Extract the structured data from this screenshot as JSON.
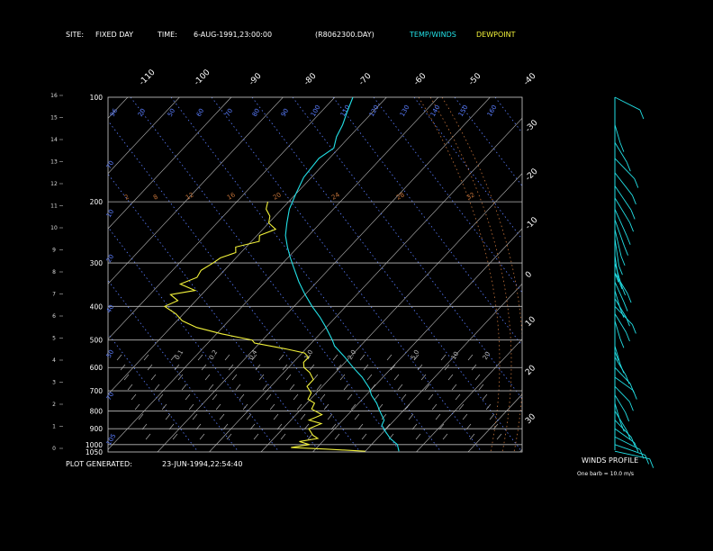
{
  "header": {
    "site_label": "SITE:",
    "site_value": "FIXED DAY",
    "time_label": "TIME:",
    "time_value": "6-AUG-1991,23:00:00",
    "file_id": "(R8062300.DAY)",
    "legend_temp": "TEMP/WINDS",
    "legend_dew": "DEWPOINT"
  },
  "footer": {
    "plot_generated_label": "PLOT GENERATED:",
    "plot_generated_value": "23-JUN-1994,22:54:40"
  },
  "wind_panel": {
    "title": "WINDS PROFILE",
    "note": "One barb = 10.0 m/s"
  },
  "colors": {
    "background": "#000000",
    "temperature": "#22e0e6",
    "dewpoint": "#f2f23a",
    "isobar": "#b8b8b8",
    "isotherm": "#b8b8b8",
    "dry_adiabat": "#5a7dff",
    "moist_adiabat": "#c8753a",
    "text": "#ffffff"
  },
  "chart_data": {
    "type": "line",
    "title": "",
    "xlabel": "",
    "ylabel": "",
    "pressure_levels": [
      "100",
      "200",
      "300",
      "400",
      "500",
      "600",
      "700",
      "800",
      "900",
      "1000",
      "1050"
    ],
    "height_ticks": [
      "0",
      "1",
      "2",
      "3",
      "4",
      "5",
      "6",
      "7",
      "8",
      "9",
      "10",
      "11",
      "12",
      "13",
      "14",
      "15",
      "16"
    ],
    "top_temperature_labels": [
      "-110",
      "-100",
      "-90",
      "-80",
      "-70",
      "-60",
      "-50",
      "-40"
    ],
    "right_temperature_labels": [
      "-30",
      "-20",
      "-10",
      "0",
      "10",
      "20",
      "30"
    ],
    "mixing_ratio_labels": [
      "2",
      "8",
      "12",
      "16",
      "20",
      "24",
      "28",
      "32"
    ],
    "dry_adiabat_labels_top": [
      "96",
      "20",
      "50",
      "60",
      "70",
      "80",
      "90",
      "100",
      "110",
      "120",
      "130",
      "140",
      "150",
      "160"
    ],
    "dry_adiabat_labels_left": [
      "70",
      "10",
      "20",
      "40",
      "50",
      "70",
      "105"
    ],
    "moist_adiabat_labels": [
      "0.1",
      "0.2",
      "0.4",
      "1.0",
      "2.0",
      "5.0",
      "10",
      "20"
    ],
    "temp_range": [
      -40,
      40
    ],
    "pressure_range": [
      100,
      1050
    ],
    "series": [
      {
        "name": "TEMP/WINDS",
        "points": [
          [
            1045,
            6.5
          ],
          [
            1000,
            5.0
          ],
          [
            960,
            2.5
          ],
          [
            920,
            0.5
          ],
          [
            880,
            -1.5
          ],
          [
            850,
            -2.0
          ],
          [
            800,
            -4.5
          ],
          [
            760,
            -6.5
          ],
          [
            720,
            -9.0
          ],
          [
            690,
            -10.5
          ],
          [
            640,
            -14.0
          ],
          [
            600,
            -17.5
          ],
          [
            560,
            -21.0
          ],
          [
            520,
            -25.0
          ],
          [
            500,
            -26.5
          ],
          [
            460,
            -30.0
          ],
          [
            430,
            -33.0
          ],
          [
            400,
            -36.5
          ],
          [
            370,
            -40.0
          ],
          [
            340,
            -43.5
          ],
          [
            310,
            -47.0
          ],
          [
            290,
            -49.5
          ],
          [
            270,
            -52.0
          ],
          [
            250,
            -54.5
          ],
          [
            230,
            -56.5
          ],
          [
            210,
            -58.5
          ],
          [
            190,
            -60.0
          ],
          [
            170,
            -61.5
          ],
          [
            150,
            -62.0
          ],
          [
            140,
            -61.0
          ],
          [
            130,
            -62.5
          ],
          [
            120,
            -63.5
          ],
          [
            110,
            -65.0
          ],
          [
            100,
            -66.5
          ]
        ]
      },
      {
        "name": "DEWPOINT",
        "points": [
          [
            1045,
            0.0
          ],
          [
            1030,
            -8.0
          ],
          [
            1020,
            -15.0
          ],
          [
            1000,
            -12.0
          ],
          [
            980,
            -14.5
          ],
          [
            960,
            -11.5
          ],
          [
            940,
            -13.0
          ],
          [
            900,
            -15.0
          ],
          [
            870,
            -13.5
          ],
          [
            850,
            -16.5
          ],
          [
            820,
            -15.0
          ],
          [
            790,
            -18.0
          ],
          [
            760,
            -18.5
          ],
          [
            740,
            -20.5
          ],
          [
            710,
            -21.0
          ],
          [
            680,
            -23.0
          ],
          [
            650,
            -23.0
          ],
          [
            620,
            -25.0
          ],
          [
            600,
            -27.0
          ],
          [
            580,
            -28.0
          ],
          [
            560,
            -28.0
          ],
          [
            545,
            -29.5
          ],
          [
            530,
            -34.0
          ],
          [
            510,
            -41.0
          ],
          [
            500,
            -42.0
          ],
          [
            480,
            -49.0
          ],
          [
            460,
            -55.0
          ],
          [
            440,
            -59.0
          ],
          [
            420,
            -61.5
          ],
          [
            400,
            -65.0
          ],
          [
            385,
            -63.5
          ],
          [
            370,
            -66.0
          ],
          [
            360,
            -62.0
          ],
          [
            345,
            -66.0
          ],
          [
            330,
            -64.0
          ],
          [
            315,
            -64.5
          ],
          [
            300,
            -63.5
          ],
          [
            290,
            -63.0
          ],
          [
            280,
            -61.0
          ],
          [
            270,
            -62.0
          ],
          [
            260,
            -58.5
          ],
          [
            250,
            -59.5
          ],
          [
            240,
            -57.5
          ],
          [
            230,
            -60.0
          ],
          [
            220,
            -61.0
          ],
          [
            210,
            -63.0
          ],
          [
            205,
            -63.5
          ],
          [
            200,
            -64.0
          ]
        ]
      }
    ],
    "winds": [
      {
        "p": 1045,
        "dir": 200,
        "spd": 16
      },
      {
        "p": 1000,
        "dir": 210,
        "spd": 14
      },
      {
        "p": 950,
        "dir": 220,
        "spd": 12
      },
      {
        "p": 900,
        "dir": 230,
        "spd": 10
      },
      {
        "p": 850,
        "dir": 240,
        "spd": 12
      },
      {
        "p": 800,
        "dir": 250,
        "spd": 14
      },
      {
        "p": 760,
        "dir": 260,
        "spd": 12
      },
      {
        "p": 720,
        "dir": 250,
        "spd": 10
      },
      {
        "p": 680,
        "dir": 240,
        "spd": 9
      },
      {
        "p": 640,
        "dir": 230,
        "spd": 8
      },
      {
        "p": 600,
        "dir": 240,
        "spd": 10
      },
      {
        "p": 560,
        "dir": 250,
        "spd": 11
      },
      {
        "p": 520,
        "dir": 260,
        "spd": 10
      },
      {
        "p": 480,
        "dir": 270,
        "spd": 9
      },
      {
        "p": 440,
        "dir": 280,
        "spd": 10
      },
      {
        "p": 420,
        "dir": 290,
        "spd": 12
      },
      {
        "p": 400,
        "dir": 300,
        "spd": 14
      },
      {
        "p": 380,
        "dir": 290,
        "spd": 12
      },
      {
        "p": 360,
        "dir": 280,
        "spd": 10
      },
      {
        "p": 340,
        "dir": 285,
        "spd": 14
      },
      {
        "p": 320,
        "dir": 290,
        "spd": 16
      },
      {
        "p": 300,
        "dir": 280,
        "spd": 18
      },
      {
        "p": 285,
        "dir": 275,
        "spd": 20
      },
      {
        "p": 270,
        "dir": 270,
        "spd": 22
      },
      {
        "p": 255,
        "dir": 265,
        "spd": 24
      },
      {
        "p": 240,
        "dir": 262,
        "spd": 24
      },
      {
        "p": 225,
        "dir": 258,
        "spd": 24
      },
      {
        "p": 210,
        "dir": 255,
        "spd": 24
      },
      {
        "p": 195,
        "dir": 250,
        "spd": 22
      },
      {
        "p": 180,
        "dir": 248,
        "spd": 22
      },
      {
        "p": 165,
        "dir": 245,
        "spd": 20
      },
      {
        "p": 150,
        "dir": 240,
        "spd": 18
      },
      {
        "p": 135,
        "dir": 250,
        "spd": 14
      },
      {
        "p": 120,
        "dir": 260,
        "spd": 10
      },
      {
        "p": 100,
        "dir": 220,
        "spd": 12
      }
    ]
  }
}
